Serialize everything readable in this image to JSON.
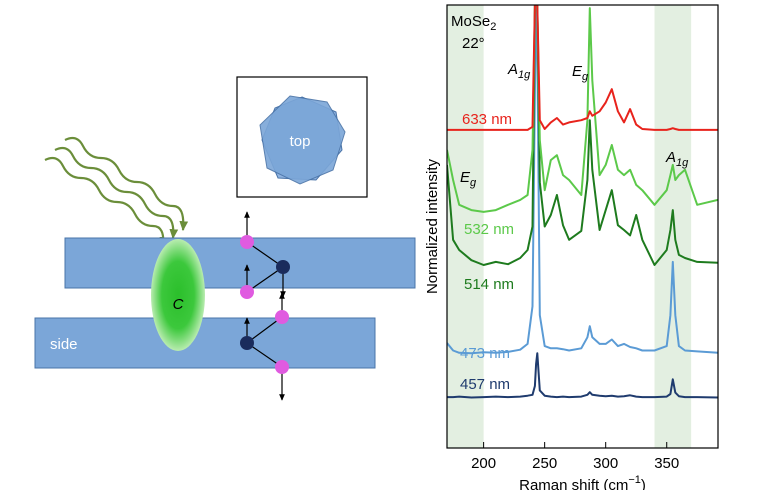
{
  "schematic": {
    "top_label": "top",
    "side_label": "side",
    "center_label": "C"
  },
  "chart_data": {
    "type": "line",
    "ylabel": "Normalized intensity",
    "xlabel": {
      "text": "Raman shift (cm",
      "sup": "−1",
      "after": ")"
    },
    "xlim": [
      170,
      392
    ],
    "xticks": [
      200,
      250,
      300,
      350
    ],
    "ylim": [
      0,
      100
    ],
    "shaded_ranges": [
      [
        170,
        200
      ],
      [
        340,
        370
      ]
    ],
    "shade_color": "#e3efe1",
    "annotations": [
      {
        "text": "MoSe",
        "sub": "2"
      },
      {
        "text": "22°"
      },
      {
        "text": "A",
        "sub": "1g"
      },
      {
        "text": "E",
        "sub": "g"
      },
      {
        "text": "E",
        "sub": "g"
      },
      {
        "text": "A",
        "sub": "1g"
      }
    ],
    "x": [
      170,
      175,
      180,
      190,
      200,
      210,
      220,
      230,
      236,
      240,
      242,
      243,
      244,
      246,
      250,
      255,
      260,
      265,
      270,
      280,
      285,
      287,
      289,
      295,
      300,
      305,
      310,
      315,
      320,
      325,
      330,
      340,
      350,
      353,
      355,
      357,
      360,
      365,
      375,
      392
    ],
    "series": [
      {
        "name": "457 nm",
        "color": "#1f3b6e",
        "values": [
          11.5,
          11.5,
          11.6,
          11.4,
          11.5,
          11.6,
          11.5,
          11.6,
          11.8,
          12,
          14,
          19,
          21.4,
          13,
          11.8,
          11.6,
          11.5,
          11.6,
          11.5,
          11.6,
          12,
          12.6,
          12,
          11.8,
          11.7,
          11.8,
          11.6,
          11.7,
          11.9,
          11.6,
          11.5,
          11.5,
          11.6,
          12.2,
          15.5,
          12.5,
          11.7,
          11.5,
          11.5,
          11.4
        ]
      },
      {
        "name": "473 nm",
        "color": "#5b9bd5",
        "values": [
          23.7,
          22,
          21.5,
          21.4,
          21.6,
          21.5,
          21.7,
          22.2,
          23.5,
          32,
          80,
          100,
          90,
          30,
          23,
          22.5,
          22.5,
          22.3,
          22,
          22.5,
          25,
          27.5,
          25,
          23.5,
          23.5,
          24.5,
          23,
          23.5,
          22.8,
          22.5,
          22,
          22,
          23,
          30,
          42,
          30,
          23,
          22,
          21.8,
          21.5
        ]
      },
      {
        "name": "514 nm",
        "color": "#1e7b1e",
        "values": [
          63.9,
          47,
          44.7,
          42.4,
          41.3,
          42,
          41.5,
          42.9,
          44.7,
          50,
          100,
          100,
          100,
          60,
          50,
          52.6,
          57.1,
          50.3,
          47,
          49,
          60.5,
          74,
          62.8,
          49.2,
          53.7,
          58.2,
          50.3,
          49.2,
          48,
          52.6,
          47,
          41.3,
          44.7,
          49.2,
          53.7,
          47,
          43.6,
          42.9,
          42,
          41.8
        ]
      },
      {
        "name": "532 nm",
        "color": "#5cc94a",
        "values": [
          67.3,
          60.5,
          54.9,
          53.7,
          53.3,
          53.7,
          54.9,
          56,
          57.1,
          67.3,
          100,
          100,
          100,
          69.5,
          58.2,
          65,
          66.1,
          61.6,
          60.5,
          57.1,
          74,
          99.3,
          83,
          61.6,
          63.9,
          68.4,
          62.8,
          61.6,
          62.8,
          59.4,
          58.2,
          54.9,
          58.2,
          61.6,
          63.9,
          60.5,
          61.6,
          62.8,
          54.9,
          56
        ]
      },
      {
        "name": "633 nm",
        "color": "#e8231c",
        "values": [
          71.8,
          71.8,
          71.8,
          71.8,
          71.8,
          71.8,
          71.8,
          71.8,
          71.8,
          72.5,
          100,
          100,
          100,
          74,
          72,
          73.5,
          74.5,
          73,
          73.5,
          74,
          74.5,
          76,
          75,
          76,
          78,
          81,
          76,
          73.5,
          76.5,
          73,
          72,
          71.8,
          71.8,
          72,
          72.2,
          72,
          71.8,
          71.8,
          71.8,
          71.8
        ]
      }
    ]
  }
}
